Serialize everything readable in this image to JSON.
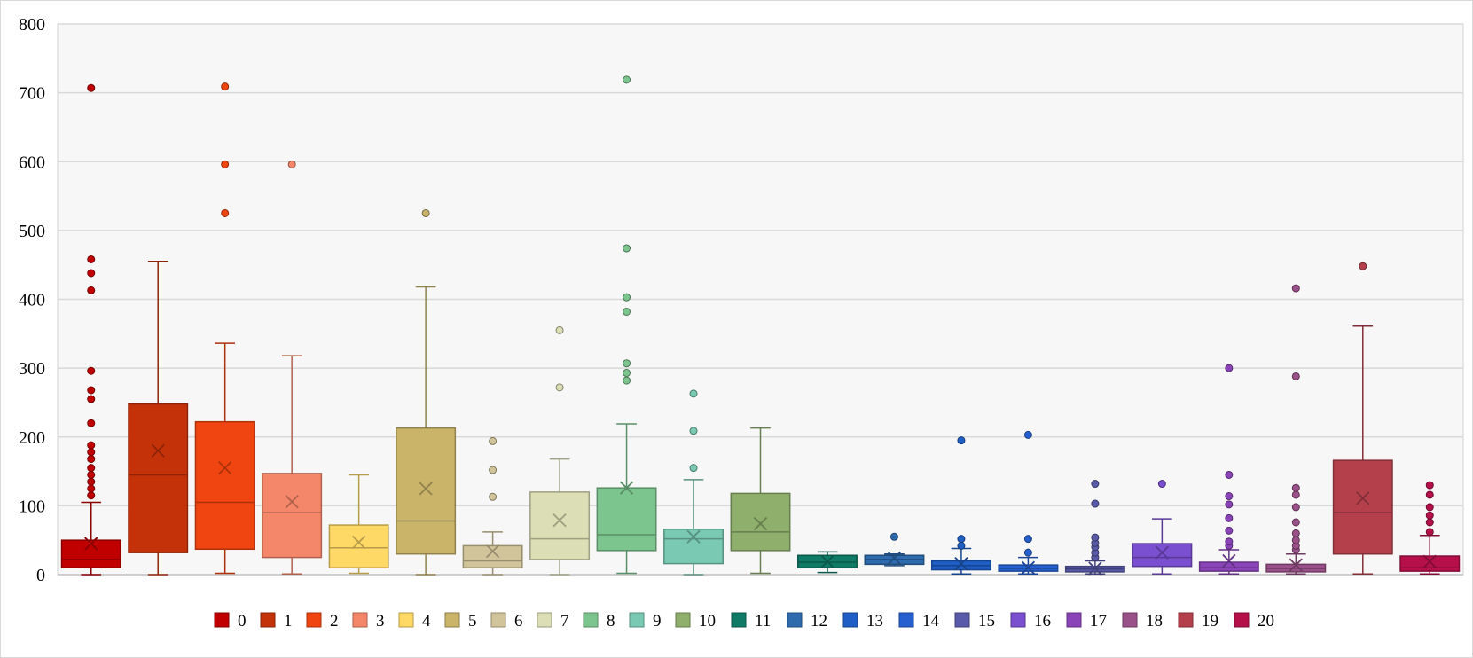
{
  "chart_data": {
    "type": "box",
    "title": "",
    "xlabel": "",
    "ylabel": "",
    "ylim": [
      0,
      800
    ],
    "yticks": [
      0,
      100,
      200,
      300,
      400,
      500,
      600,
      700,
      800
    ],
    "grid": true,
    "legend_position": "bottom",
    "series": [
      {
        "name": "0",
        "color": "#C00000",
        "min": 0,
        "q1": 10,
        "median": 22,
        "q3": 50,
        "max": 105,
        "mean": 45,
        "outliers": [
          115,
          125,
          135,
          145,
          155,
          168,
          178,
          188,
          220,
          255,
          268,
          296,
          413,
          438,
          458,
          707
        ]
      },
      {
        "name": "1",
        "color": "#C4320A",
        "min": 0,
        "q1": 32,
        "median": 145,
        "q3": 248,
        "max": 455,
        "mean": 180,
        "outliers": []
      },
      {
        "name": "2",
        "color": "#F04510",
        "min": 2,
        "q1": 37,
        "median": 105,
        "q3": 222,
        "max": 336,
        "mean": 155,
        "outliers": [
          525,
          596,
          709
        ]
      },
      {
        "name": "3",
        "color": "#F4876A",
        "min": 1,
        "q1": 25,
        "median": 90,
        "q3": 147,
        "max": 318,
        "mean": 106,
        "outliers": [
          596
        ]
      },
      {
        "name": "4",
        "color": "#FFD966",
        "min": 2,
        "q1": 10,
        "median": 39,
        "q3": 72,
        "max": 145,
        "mean": 47,
        "outliers": []
      },
      {
        "name": "5",
        "color": "#C9B46A",
        "min": 0,
        "q1": 30,
        "median": 78,
        "q3": 213,
        "max": 418,
        "mean": 125,
        "outliers": [
          525
        ]
      },
      {
        "name": "6",
        "color": "#D2C49A",
        "min": 0,
        "q1": 10,
        "median": 20,
        "q3": 42,
        "max": 62,
        "mean": 34,
        "outliers": [
          113,
          152,
          194
        ]
      },
      {
        "name": "7",
        "color": "#DCDEB5",
        "min": 0,
        "q1": 22,
        "median": 52,
        "q3": 120,
        "max": 168,
        "mean": 79,
        "outliers": [
          272,
          355
        ]
      },
      {
        "name": "8",
        "color": "#7DC58E",
        "min": 2,
        "q1": 35,
        "median": 58,
        "q3": 126,
        "max": 219,
        "mean": 126,
        "outliers": [
          282,
          293,
          307,
          382,
          403,
          474,
          719
        ]
      },
      {
        "name": "9",
        "color": "#7ACAB3",
        "min": 0,
        "q1": 16,
        "median": 52,
        "q3": 66,
        "max": 138,
        "mean": 55,
        "outliers": [
          155,
          209,
          263
        ]
      },
      {
        "name": "10",
        "color": "#8FAF6C",
        "min": 2,
        "q1": 35,
        "median": 62,
        "q3": 118,
        "max": 213,
        "mean": 74,
        "outliers": []
      },
      {
        "name": "11",
        "color": "#0F7A66",
        "min": 3,
        "q1": 10,
        "median": 18,
        "q3": 28,
        "max": 33,
        "mean": 19,
        "outliers": []
      },
      {
        "name": "12",
        "color": "#2E6BAE",
        "min": 13,
        "q1": 15,
        "median": 22,
        "q3": 28,
        "max": 30,
        "mean": 24,
        "outliers": [
          55
        ]
      },
      {
        "name": "13",
        "color": "#1F5EC4",
        "min": 1,
        "q1": 7,
        "median": 13,
        "q3": 20,
        "max": 38,
        "mean": 16,
        "outliers": [
          42,
          52,
          195
        ]
      },
      {
        "name": "14",
        "color": "#2660D0",
        "min": 1,
        "q1": 5,
        "median": 9,
        "q3": 14,
        "max": 25,
        "mean": 10,
        "outliers": [
          32,
          52,
          203
        ]
      },
      {
        "name": "15",
        "color": "#5A5AAA",
        "min": 1,
        "q1": 4,
        "median": 8,
        "q3": 12,
        "max": 20,
        "mean": 9,
        "outliers": [
          25,
          32,
          40,
          46,
          54,
          103,
          132
        ]
      },
      {
        "name": "16",
        "color": "#7A4FD0",
        "min": 1,
        "q1": 12,
        "median": 25,
        "q3": 45,
        "max": 81,
        "mean": 32,
        "outliers": [
          132
        ]
      },
      {
        "name": "17",
        "color": "#8A44B8",
        "min": 1,
        "q1": 5,
        "median": 10,
        "q3": 18,
        "max": 36,
        "mean": 20,
        "outliers": [
          42,
          48,
          64,
          82,
          102,
          114,
          145,
          300
        ]
      },
      {
        "name": "18",
        "color": "#9A5088",
        "min": 1,
        "q1": 4,
        "median": 9,
        "q3": 15,
        "max": 30,
        "mean": 14,
        "outliers": [
          36,
          42,
          50,
          60,
          76,
          98,
          116,
          126,
          288,
          416
        ]
      },
      {
        "name": "19",
        "color": "#B4404C",
        "min": 1,
        "q1": 30,
        "median": 90,
        "q3": 166,
        "max": 361,
        "mean": 111,
        "outliers": [
          448
        ]
      },
      {
        "name": "20",
        "color": "#B5104A",
        "min": 1,
        "q1": 5,
        "median": 10,
        "q3": 27,
        "max": 57,
        "mean": 19,
        "outliers": [
          62,
          76,
          86,
          98,
          116,
          130
        ]
      }
    ]
  }
}
